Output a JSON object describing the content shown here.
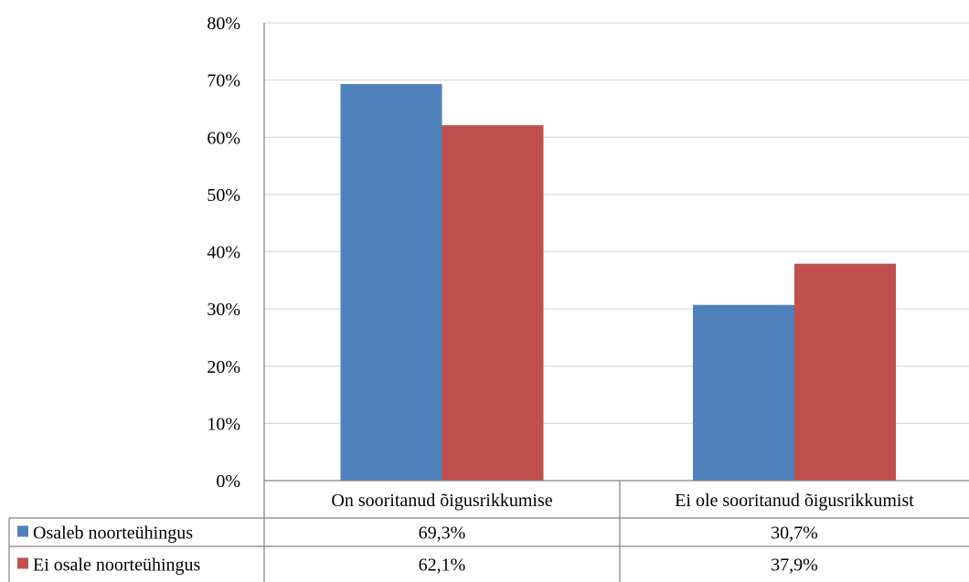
{
  "chart_data": {
    "type": "bar",
    "categories": [
      "On sooritanud õigusrikkumise",
      "Ei ole sooritanud õigusrikkumist"
    ],
    "series": [
      {
        "name": "Osaleb noorteühingus",
        "values": [
          69.3,
          30.7
        ],
        "labels": [
          "69,3%",
          "30,7%"
        ],
        "color": "#4f81bd"
      },
      {
        "name": "Ei osale noorteühingus",
        "values": [
          62.1,
          37.9
        ],
        "labels": [
          "62,1%",
          "37,9%"
        ],
        "color": "#c0504d"
      }
    ],
    "ylim": [
      0,
      80
    ],
    "yticks": [
      "0%",
      "10%",
      "20%",
      "30%",
      "40%",
      "50%",
      "60%",
      "70%",
      "80%"
    ],
    "grid": true,
    "legend": "data-table-left"
  }
}
